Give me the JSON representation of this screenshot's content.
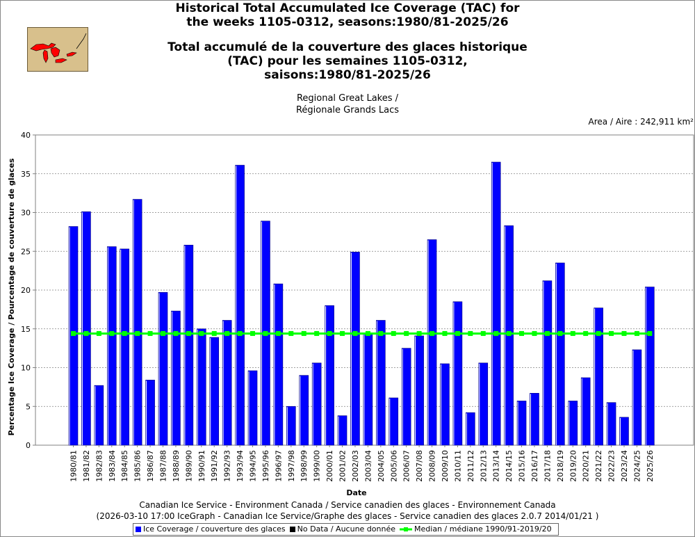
{
  "titles": {
    "en1": "Historical Total Accumulated Ice Coverage (TAC) for",
    "en2": "the weeks 1105-0312, seasons:1980/81-2025/26",
    "fr1": "Total accumulé de la couverture des glaces historique",
    "fr2": "(TAC) pour les semaines 1105-0312,",
    "fr3": "saisons:1980/81-2025/26"
  },
  "region": {
    "line1": "Regional Great Lakes /",
    "line2": "Régionale Grands Lacs"
  },
  "area_label": "Area / Aire : 242,911 km²",
  "footer": {
    "line1": "Canadian Ice Service - Environment Canada / Service canadien des glaces - Environnement Canada",
    "line2": "(2026-03-10 17:00 IceGraph - Canadian Ice Service/Graphe des glaces - Service canadien des glaces 2.0.7 2014/01/21 )"
  },
  "legend": {
    "ice": "Ice Coverage / couverture des glaces",
    "nodata": "No Data / Aucune donnée",
    "median": "Median / médiane 1990/91-2019/20"
  },
  "colors": {
    "bar": "#0000ff",
    "median": "#00ff00",
    "grid": "#808080",
    "map_bg": "#d8c08c",
    "map_lakes": "#ff0000"
  },
  "chart_data": {
    "type": "bar",
    "xlabel": "Date",
    "ylabel": "Percentage Ice Coverage / Pourcentage de couverture de glaces",
    "ylim": [
      0,
      40
    ],
    "yticks": [
      0,
      5,
      10,
      15,
      20,
      25,
      30,
      35,
      40
    ],
    "grid": true,
    "categories": [
      "1980/81",
      "1981/82",
      "1982/83",
      "1983/84",
      "1984/85",
      "1985/86",
      "1986/87",
      "1987/88",
      "1988/89",
      "1989/90",
      "1990/91",
      "1991/92",
      "1992/93",
      "1993/94",
      "1994/95",
      "1995/96",
      "1996/97",
      "1997/98",
      "1998/99",
      "1999/00",
      "2000/01",
      "2001/02",
      "2002/03",
      "2003/04",
      "2004/05",
      "2005/06",
      "2006/07",
      "2007/08",
      "2008/09",
      "2009/10",
      "2010/11",
      "2011/12",
      "2012/13",
      "2013/14",
      "2014/15",
      "2015/16",
      "2016/17",
      "2017/18",
      "2018/19",
      "2019/20",
      "2020/21",
      "2021/22",
      "2022/23",
      "2023/24",
      "2024/25",
      "2025/26"
    ],
    "series": [
      {
        "name": "Ice Coverage / couverture des glaces",
        "values": [
          28.2,
          30.1,
          7.7,
          25.6,
          25.3,
          31.7,
          8.4,
          19.7,
          17.3,
          25.8,
          15.0,
          13.9,
          16.1,
          36.1,
          9.6,
          28.9,
          20.8,
          5.0,
          9.0,
          10.6,
          18.0,
          3.8,
          24.9,
          14.5,
          16.1,
          6.1,
          12.5,
          14.1,
          26.5,
          10.5,
          18.5,
          4.2,
          10.6,
          36.5,
          28.3,
          5.7,
          6.7,
          21.2,
          23.5,
          5.7,
          8.7,
          17.7,
          5.5,
          3.6,
          12.3,
          20.4
        ]
      },
      {
        "name": "Median / médiane 1990/91-2019/20",
        "type": "line",
        "value": 14.4
      }
    ]
  }
}
